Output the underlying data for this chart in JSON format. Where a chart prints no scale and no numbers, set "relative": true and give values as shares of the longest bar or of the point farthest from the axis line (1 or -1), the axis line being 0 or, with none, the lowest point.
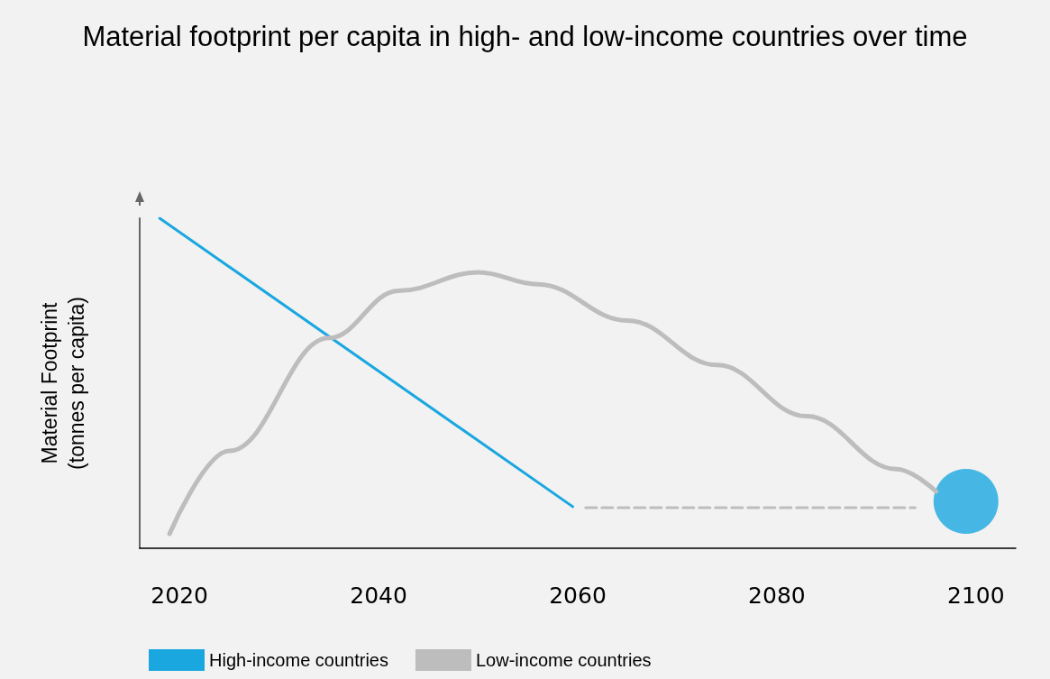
{
  "chart_data": {
    "type": "line",
    "title": "Material footprint per capita in high- and low-income countries over time",
    "ylabel": "Material Footprint\n(tonnes per capita)",
    "relative": true,
    "xlim": [
      2016,
      2104
    ],
    "xticks": [
      2020,
      2040,
      2060,
      2080,
      2100
    ],
    "legend": "bottom",
    "grid": false,
    "marker": "none",
    "series": [
      {
        "name": "High-income countries",
        "color": "#1aa7e0",
        "x": [
          2018,
          2059.5
        ],
        "values": [
          1,
          0.126
        ]
      },
      {
        "name": "Low-income countries",
        "color": "#bdbdbd",
        "x": [
          2019,
          2025,
          2035,
          2042,
          2050,
          2056,
          2065,
          2074,
          2083,
          2092,
          2096
        ],
        "values": [
          0.044,
          0.295,
          0.637,
          0.78,
          0.836,
          0.8,
          0.69,
          0.555,
          0.4,
          0.24,
          0.172
        ]
      },
      {
        "color": "#bdbdbd",
        "line_style": "dashed",
        "x": [
          2060.8,
          2093.9
        ],
        "values": [
          0.123,
          0.123
        ]
      },
      {
        "type": "scatter",
        "color": "#1aa7e0",
        "marker": "circle",
        "x": [
          2099
        ],
        "values": [
          0.142
        ]
      }
    ]
  }
}
